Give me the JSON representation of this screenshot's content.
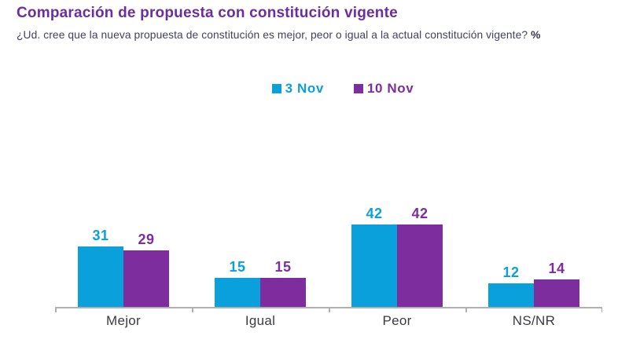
{
  "header": {
    "title": "Comparación de propuesta con constitución vigente",
    "subtitle": "¿Ud. cree que la nueva propuesta de constitución es mejor, peor o igual a la actual constitución vigente? ",
    "subtitle_suffix": "%"
  },
  "colors": {
    "title": "#6b2e9c",
    "subtitle": "#41415e",
    "series_1": "#09a0dc",
    "series_2": "#7e2d9e",
    "axis": "#b0b0b0",
    "category_label": "#3a3a42"
  },
  "chart_data": {
    "type": "bar",
    "title": "Comparación de propuesta con constitución vigente",
    "subtitle": "¿Ud. cree que la nueva propuesta de constitución es mejor, peor o igual a la actual constitución vigente? %",
    "categories": [
      "Mejor",
      "Igual",
      "Peor",
      "NS/NR"
    ],
    "series": [
      {
        "name": "3 Nov",
        "color": "#09a0dc",
        "values": [
          31,
          15,
          42,
          12
        ]
      },
      {
        "name": "10 Nov",
        "color": "#7e2d9e",
        "values": [
          29,
          15,
          42,
          14
        ]
      }
    ],
    "unit": "%",
    "xlabel": "",
    "ylabel": "",
    "ylim": [
      0,
      45
    ],
    "grid": false,
    "value_labels": true,
    "legend_position": "top-center"
  }
}
